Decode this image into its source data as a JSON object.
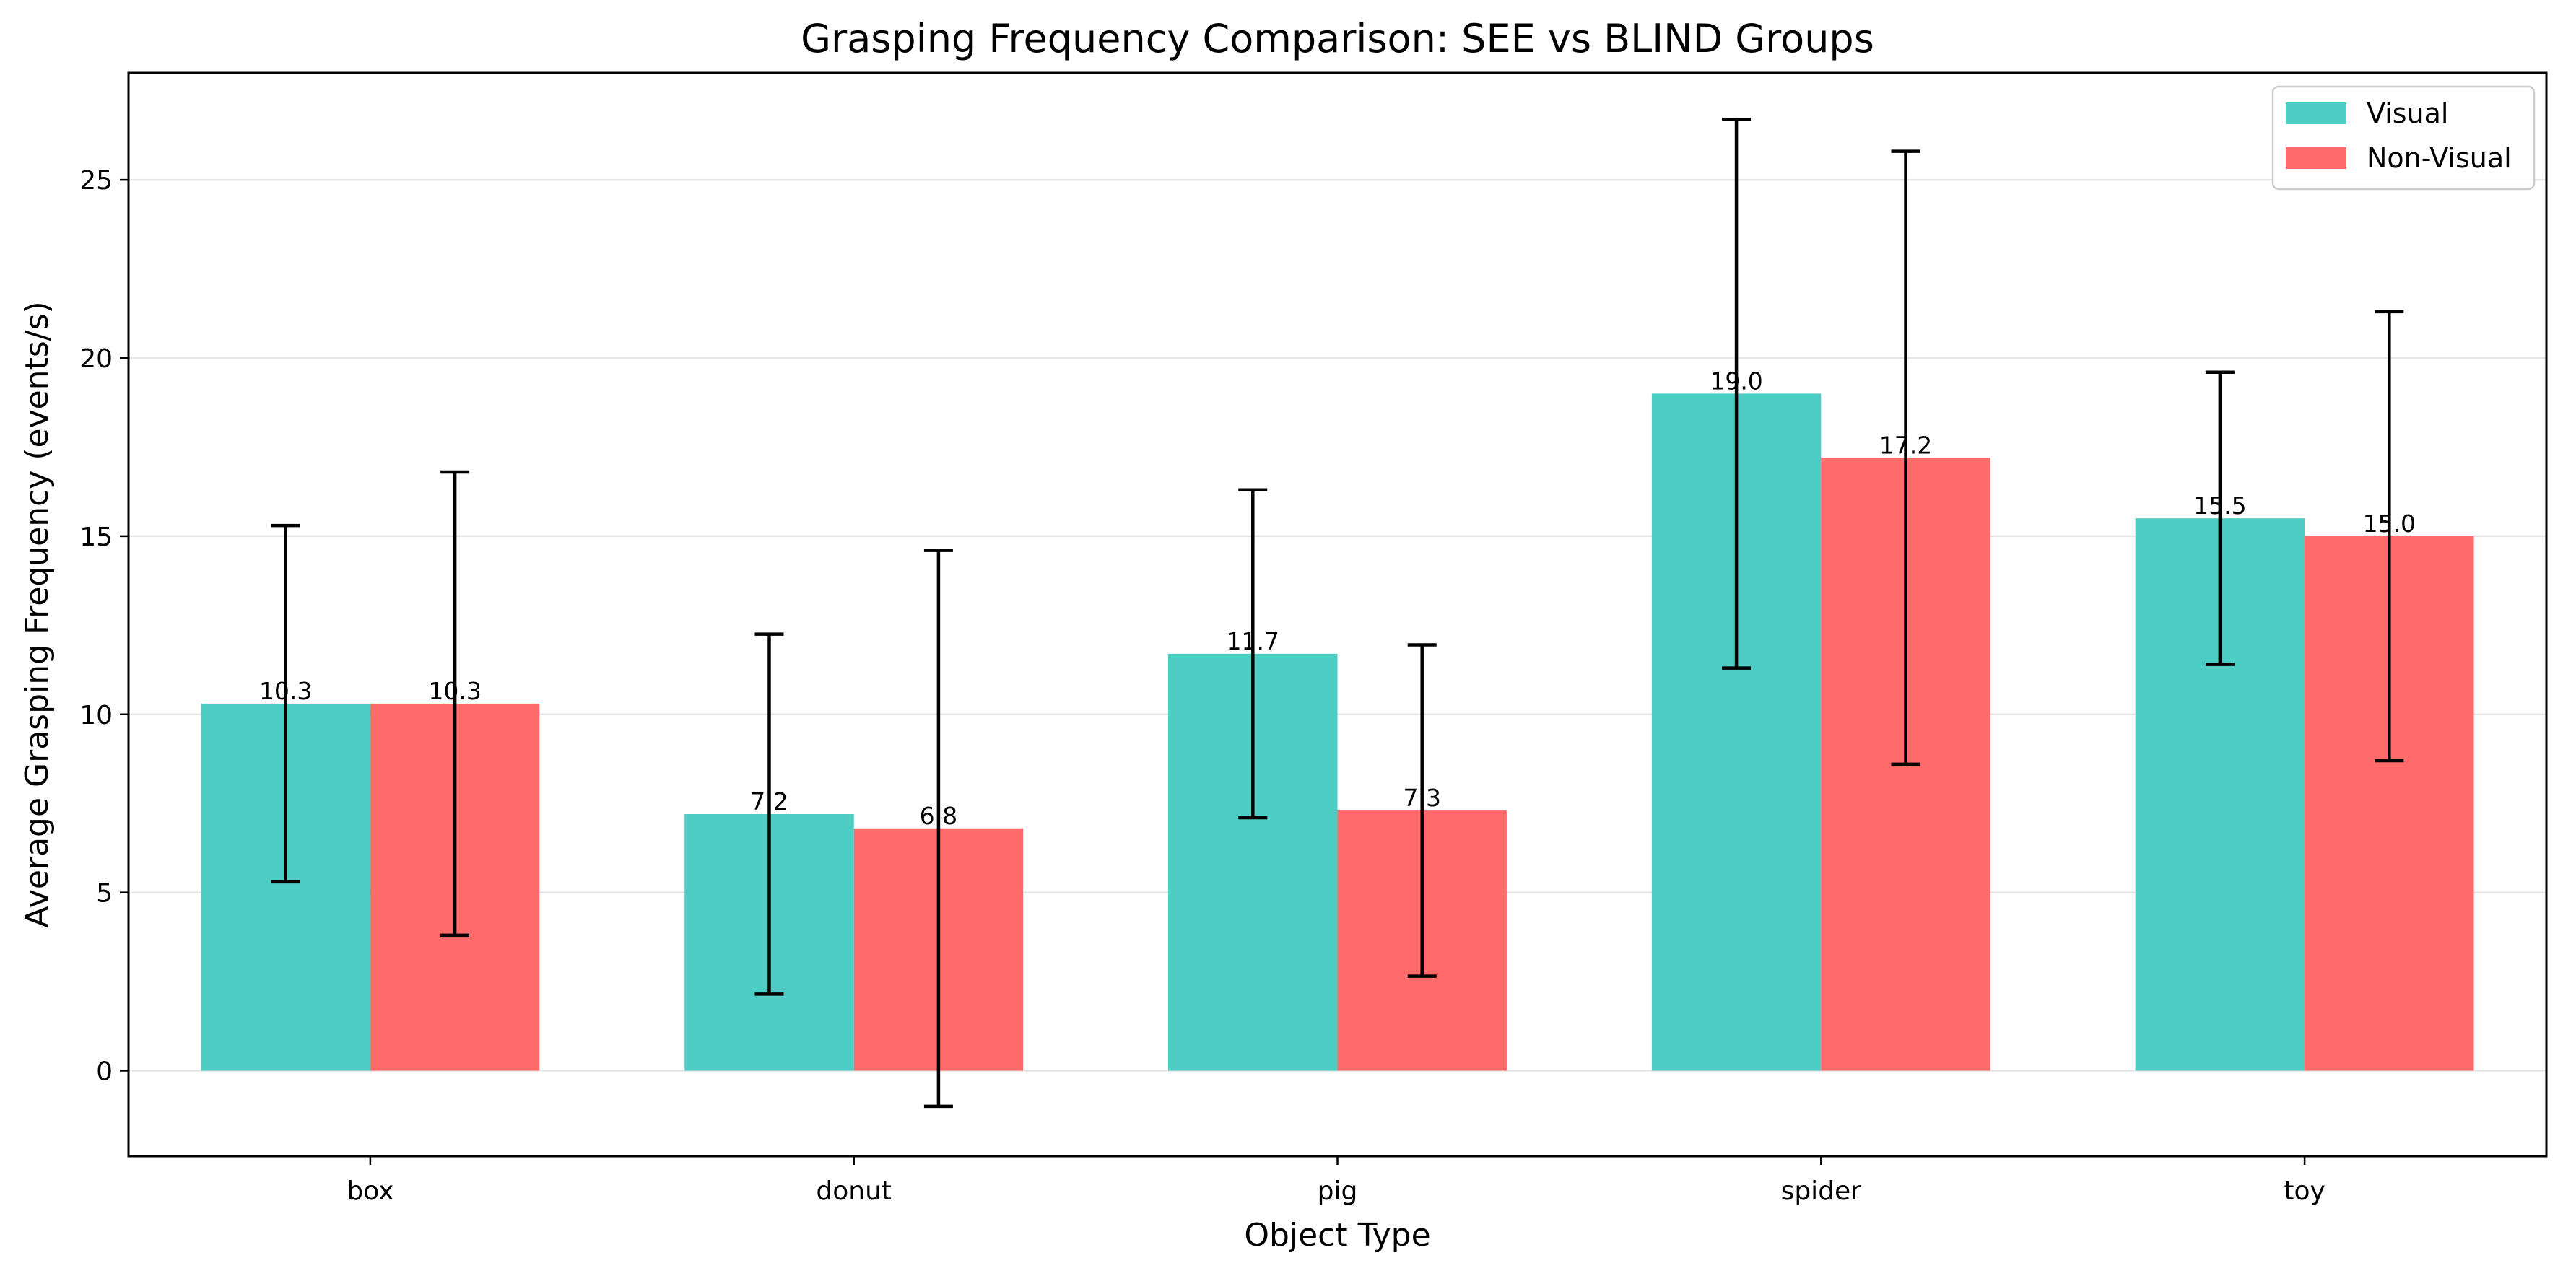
{
  "chart_data": {
    "type": "bar",
    "title": "Grasping Frequency Comparison: SEE vs BLIND Groups",
    "xlabel": "Object Type",
    "ylabel": "Average Grasping Frequency (events/s)",
    "categories": [
      "box",
      "donut",
      "pig",
      "spider",
      "toy"
    ],
    "ylim": [
      -2.4,
      28.0
    ],
    "yticks": [
      0,
      5,
      10,
      15,
      20,
      25
    ],
    "grid": "horizontal",
    "legend_position": "top-right",
    "series": [
      {
        "name": "Visual",
        "color": "#4ECDC4",
        "values": [
          10.3,
          7.2,
          11.7,
          19.0,
          15.5
        ],
        "labels": [
          "10.3",
          "7.2",
          "11.7",
          "19.0",
          "15.5"
        ],
        "error": [
          5.0,
          5.05,
          4.6,
          7.7,
          4.1
        ]
      },
      {
        "name": "Non-Visual",
        "color": "#FF6B6B",
        "values": [
          10.3,
          6.8,
          7.3,
          17.2,
          15.0
        ],
        "labels": [
          "10.3",
          "6.8",
          "7.3",
          "17.2",
          "15.0"
        ],
        "error": [
          6.5,
          7.8,
          4.65,
          8.6,
          6.3
        ]
      }
    ]
  }
}
